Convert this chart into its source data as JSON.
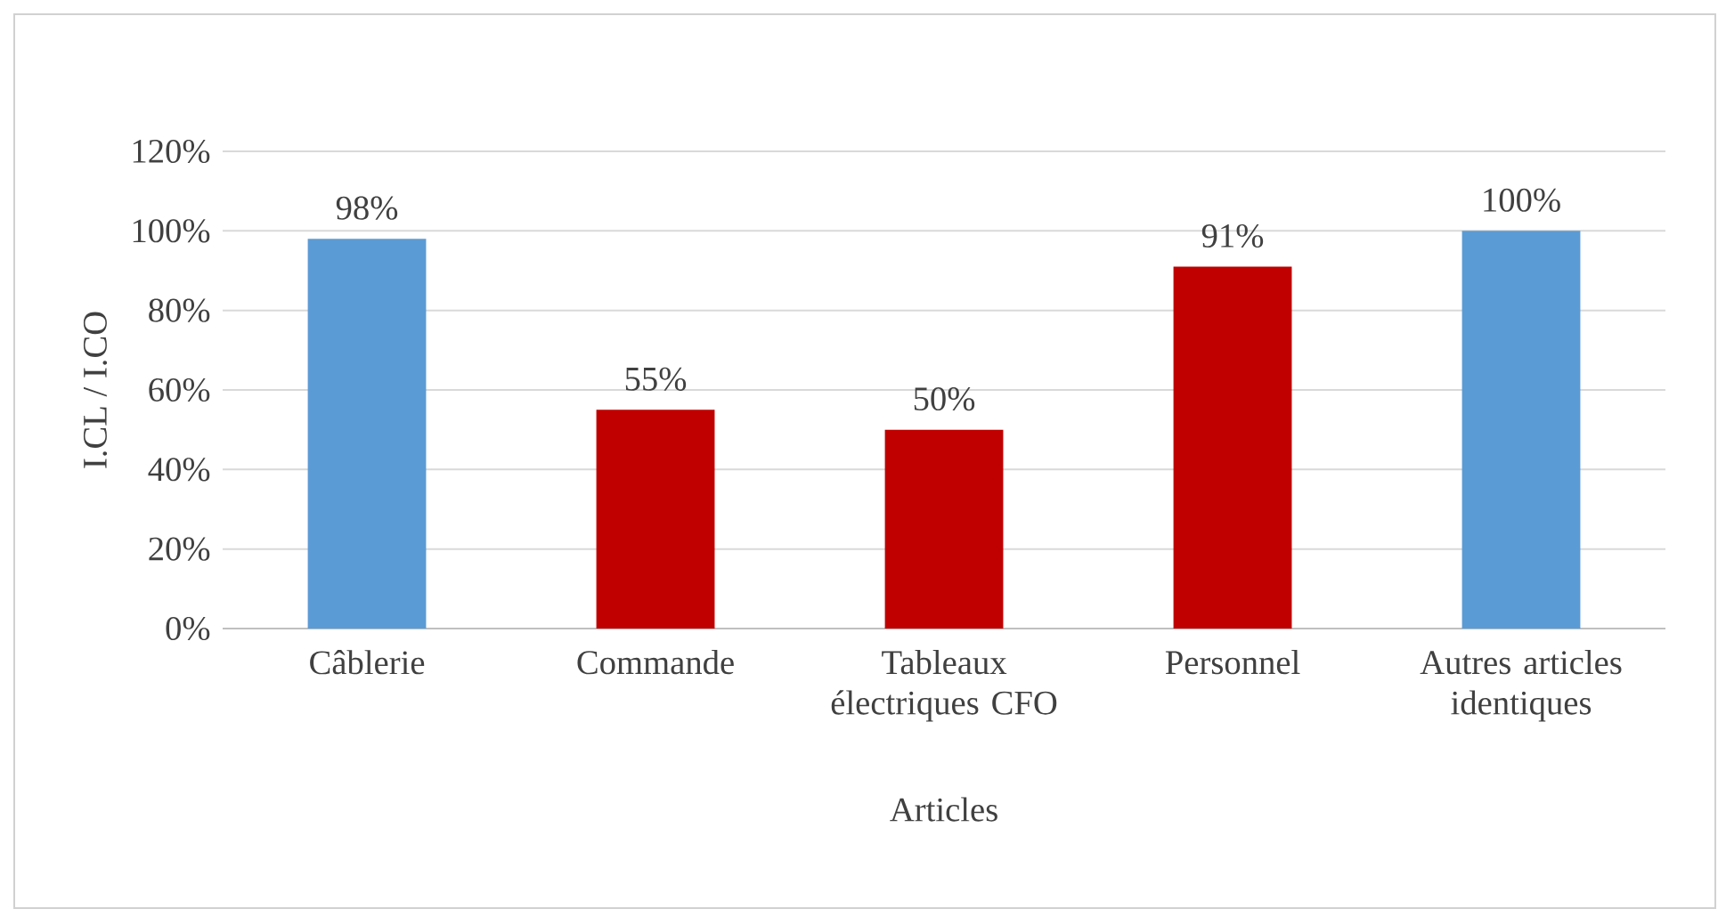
{
  "chart_data": {
    "type": "bar",
    "xlabel": "Articles",
    "ylabel": "I.CL / I.CO",
    "categories": [
      "Câblerie",
      "Commande",
      "Tableaux électriques CFO",
      "Personnel",
      "Autres articles identiques"
    ],
    "values": [
      98,
      55,
      50,
      91,
      100
    ],
    "colors": [
      "#5b9bd5",
      "#c00000",
      "#c00000",
      "#c00000",
      "#5b9bd5"
    ],
    "value_labels": [
      "98%",
      "55%",
      "50%",
      "91%",
      "100%"
    ],
    "ylim": [
      0,
      120
    ],
    "yticks": [
      {
        "value": 0,
        "label": "0%"
      },
      {
        "value": 20,
        "label": "20%"
      },
      {
        "value": 40,
        "label": "40%"
      },
      {
        "value": 60,
        "label": "60%"
      },
      {
        "value": 80,
        "label": "80%"
      },
      {
        "value": 100,
        "label": "100%"
      },
      {
        "value": 120,
        "label": "120%"
      }
    ],
    "grid": "y"
  }
}
